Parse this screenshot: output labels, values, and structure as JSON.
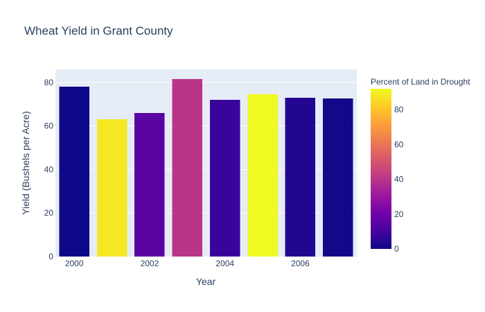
{
  "chart_data": {
    "type": "bar",
    "title": "Wheat Yield in Grant County",
    "xlabel": "Year",
    "ylabel": "Yield (Bushels per Acre)",
    "categories": [
      2000,
      2001,
      2002,
      2003,
      2004,
      2005,
      2006,
      2007
    ],
    "values": [
      78,
      63,
      66,
      81.5,
      72,
      74.5,
      73,
      72.7
    ],
    "color_values": [
      0,
      88,
      15,
      40,
      8,
      92,
      4,
      1
    ],
    "x_tick_labels": [
      "2000",
      "2002",
      "2004",
      "2006"
    ],
    "x_tick_values": [
      2000,
      2002,
      2004,
      2006
    ],
    "ylim": [
      0,
      86
    ],
    "y_ticks": [
      0,
      20,
      40,
      60,
      80
    ],
    "grid": true,
    "colorbar": {
      "title": "Percent of Land in Drought",
      "range": [
        0,
        92
      ],
      "ticks": [
        0,
        20,
        40,
        60,
        80
      ],
      "colorscale": [
        "#0d0887",
        "#46039f",
        "#7201a8",
        "#9c179e",
        "#bd3786",
        "#d8576b",
        "#ed7953",
        "#fb9f3a",
        "#fdca26",
        "#f0f921"
      ]
    },
    "plot_bgcolor": "#e5ecf6"
  }
}
